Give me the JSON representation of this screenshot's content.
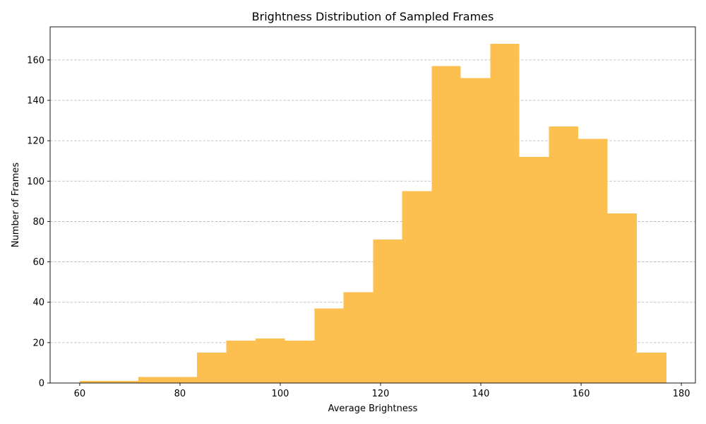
{
  "chart_data": {
    "type": "bar",
    "title": "Brightness Distribution of Sampled Frames",
    "xlabel": "Average Brightness",
    "ylabel": "Number of Frames",
    "xlim": [
      54.1,
      182.8
    ],
    "ylim": [
      0,
      176.4
    ],
    "grid": {
      "y": true,
      "x": false
    },
    "bar_color": "#fdbf4f",
    "bins": [
      {
        "x0": 60.0,
        "x1": 65.8,
        "count": 1
      },
      {
        "x0": 65.8,
        "x1": 71.7,
        "count": 1
      },
      {
        "x0": 71.7,
        "x1": 77.5,
        "count": 3
      },
      {
        "x0": 77.5,
        "x1": 83.4,
        "count": 3
      },
      {
        "x0": 83.4,
        "x1": 89.2,
        "count": 15
      },
      {
        "x0": 89.2,
        "x1": 95.1,
        "count": 21
      },
      {
        "x0": 95.1,
        "x1": 100.9,
        "count": 22
      },
      {
        "x0": 100.9,
        "x1": 106.8,
        "count": 21
      },
      {
        "x0": 106.8,
        "x1": 112.6,
        "count": 37
      },
      {
        "x0": 112.6,
        "x1": 118.5,
        "count": 45
      },
      {
        "x0": 118.5,
        "x1": 124.3,
        "count": 71
      },
      {
        "x0": 124.3,
        "x1": 130.2,
        "count": 95
      },
      {
        "x0": 130.2,
        "x1": 136.0,
        "count": 157
      },
      {
        "x0": 136.0,
        "x1": 141.9,
        "count": 151
      },
      {
        "x0": 141.9,
        "x1": 147.7,
        "count": 168
      },
      {
        "x0": 147.7,
        "x1": 153.6,
        "count": 112
      },
      {
        "x0": 153.6,
        "x1": 159.4,
        "count": 127
      },
      {
        "x0": 159.4,
        "x1": 165.3,
        "count": 121
      },
      {
        "x0": 165.3,
        "x1": 171.1,
        "count": 84
      },
      {
        "x0": 171.1,
        "x1": 177.0,
        "count": 15
      }
    ],
    "x_ticks": [
      {
        "value": 60,
        "label": "60"
      },
      {
        "value": 80,
        "label": "80"
      },
      {
        "value": 100,
        "label": "100"
      },
      {
        "value": 120,
        "label": "120"
      },
      {
        "value": 140,
        "label": "140"
      },
      {
        "value": 160,
        "label": "160"
      },
      {
        "value": 180,
        "label": "180"
      }
    ],
    "y_ticks": [
      {
        "value": 0,
        "label": "0"
      },
      {
        "value": 20,
        "label": "20"
      },
      {
        "value": 40,
        "label": "40"
      },
      {
        "value": 60,
        "label": "60"
      },
      {
        "value": 80,
        "label": "80"
      },
      {
        "value": 100,
        "label": "100"
      },
      {
        "value": 120,
        "label": "120"
      },
      {
        "value": 140,
        "label": "140"
      },
      {
        "value": 160,
        "label": "160"
      }
    ]
  }
}
